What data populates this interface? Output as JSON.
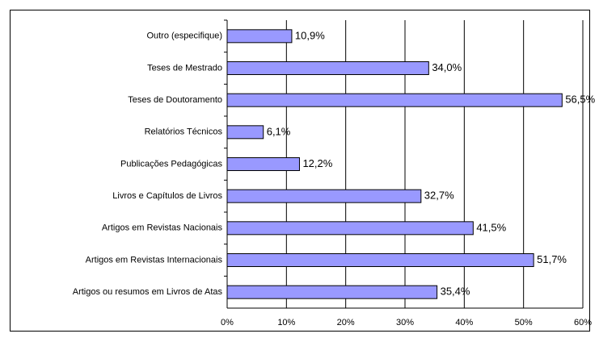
{
  "chart_data": {
    "type": "bar",
    "orientation": "horizontal",
    "categories": [
      "Outro (especifique)",
      "Teses de Mestrado",
      "Teses de Doutoramento",
      "Relatórios Técnicos",
      "Publicações Pedagógicas",
      "Livros e Capítulos de Livros",
      "Artigos em Revistas Nacionais",
      "Artigos em Revistas Internacionais",
      "Artigos ou resumos em Livros de Atas"
    ],
    "values": [
      10.9,
      34.0,
      56.5,
      6.1,
      12.2,
      32.7,
      41.5,
      51.7,
      35.4
    ],
    "value_labels": [
      "10,9%",
      "34,0%",
      "56,5%",
      "6,1%",
      "12,2%",
      "32,7%",
      "41,5%",
      "51,7%",
      "35,4%"
    ],
    "color": "#9999ff",
    "xlim": [
      0,
      60
    ],
    "xticks": [
      {
        "value": 0,
        "label": "0%"
      },
      {
        "value": 10,
        "label": "10%"
      },
      {
        "value": 20,
        "label": "20%"
      },
      {
        "value": 30,
        "label": "30%"
      },
      {
        "value": 40,
        "label": "40%"
      },
      {
        "value": 50,
        "label": "50%"
      },
      {
        "value": 60,
        "label": "60%"
      }
    ],
    "grid": true
  }
}
